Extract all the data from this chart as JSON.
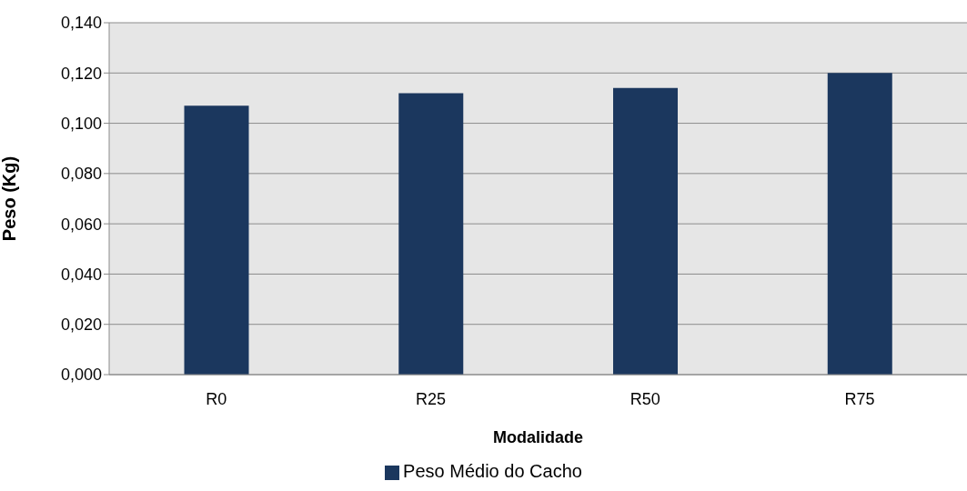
{
  "chart_data": {
    "type": "bar",
    "xlabel": "Modalidade",
    "ylabel": "Peso (Kg)",
    "categories": [
      "R0",
      "R25",
      "R50",
      "R75"
    ],
    "series": [
      {
        "name": "Peso Médio do Cacho",
        "color": "#1b375e",
        "values": [
          0.107,
          0.112,
          0.114,
          0.12
        ]
      }
    ],
    "ylim": [
      0,
      0.14
    ],
    "yticks": [
      {
        "value": 0,
        "label": "0,000"
      },
      {
        "value": 0.02,
        "label": "0,020"
      },
      {
        "value": 0.04,
        "label": "0,040"
      },
      {
        "value": 0.06,
        "label": "0,060"
      },
      {
        "value": 0.08,
        "label": "0,080"
      },
      {
        "value": 0.1,
        "label": "0,100"
      },
      {
        "value": 0.12,
        "label": "0,120"
      },
      {
        "value": 0.14,
        "label": "0,140"
      }
    ],
    "grid": "y",
    "legend": "bottom"
  }
}
